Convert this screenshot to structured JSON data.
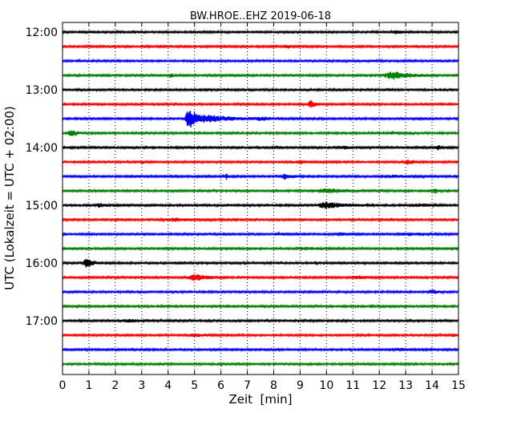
{
  "chart_data": {
    "type": "line",
    "title": "BW.HROE..EHZ 2019-06-18",
    "xlabel": "Zeit  [min]",
    "ylabel": "UTC (Lokalzeit = UTC + 02:00)",
    "xlim": [
      0,
      15
    ],
    "x_ticks": [
      0,
      1,
      2,
      3,
      4,
      5,
      6,
      7,
      8,
      9,
      10,
      11,
      12,
      13,
      14,
      15
    ],
    "x_tick_labels": [
      "0",
      "1",
      "2",
      "3",
      "4",
      "5",
      "6",
      "7",
      "8",
      "9",
      "10",
      "11",
      "12",
      "13",
      "14",
      "15"
    ],
    "y_tick_labels": [
      "12:00",
      "13:00",
      "14:00",
      "15:00",
      "16:00",
      "17:00"
    ],
    "grid": "vertical-dotted",
    "series_colors": [
      "#000000",
      "#ff0000",
      "#0000ff",
      "#008000"
    ],
    "traces": [
      {
        "start": "12:00",
        "color": "#000000",
        "bursts": [
          [
            12.6,
            0.6,
            0.3
          ]
        ]
      },
      {
        "start": "12:15",
        "color": "#ff0000",
        "bursts": [
          [
            8.5,
            0.5,
            0.3
          ]
        ]
      },
      {
        "start": "12:30",
        "color": "#0000ff",
        "bursts": [
          [
            11.5,
            0.6,
            0.2
          ]
        ]
      },
      {
        "start": "12:45",
        "color": "#008000",
        "bursts": [
          [
            4.1,
            0.2,
            0.6
          ],
          [
            12.5,
            1.4,
            1.0
          ]
        ]
      },
      {
        "start": "13:00",
        "color": "#000000",
        "bursts": []
      },
      {
        "start": "13:15",
        "color": "#ff0000",
        "bursts": [
          [
            9.4,
            0.4,
            1.0
          ]
        ]
      },
      {
        "start": "13:30",
        "color": "#0000ff",
        "bursts": [
          [
            4.8,
            0.6,
            2.8
          ],
          [
            5.6,
            1.8,
            0.8
          ],
          [
            7.5,
            1.5,
            0.3
          ]
        ]
      },
      {
        "start": "13:45",
        "color": "#008000",
        "bursts": [
          [
            0.3,
            0.5,
            0.8
          ],
          [
            12.5,
            0.6,
            0.3
          ]
        ]
      },
      {
        "start": "14:00",
        "color": "#000000",
        "bursts": [
          [
            10.7,
            0.8,
            0.3
          ],
          [
            14.2,
            0.3,
            0.6
          ]
        ]
      },
      {
        "start": "14:15",
        "color": "#ff0000",
        "bursts": [
          [
            3.0,
            0.3,
            0.3
          ],
          [
            9.0,
            1.2,
            0.3
          ],
          [
            13.1,
            0.5,
            0.6
          ]
        ]
      },
      {
        "start": "14:30",
        "color": "#0000ff",
        "bursts": [
          [
            6.2,
            0.1,
            1.2
          ],
          [
            8.4,
            0.6,
            0.6
          ],
          [
            12.5,
            1.0,
            0.3
          ]
        ]
      },
      {
        "start": "14:45",
        "color": "#008000",
        "bursts": [
          [
            10.0,
            2.0,
            0.5
          ],
          [
            14.1,
            0.2,
            0.7
          ]
        ]
      },
      {
        "start": "15:00",
        "color": "#000000",
        "bursts": [
          [
            1.4,
            0.6,
            0.4
          ],
          [
            10.0,
            1.5,
            0.8
          ],
          [
            13.5,
            0.8,
            0.3
          ]
        ]
      },
      {
        "start": "15:15",
        "color": "#ff0000",
        "bursts": [
          [
            4.2,
            1.6,
            0.3
          ]
        ]
      },
      {
        "start": "15:30",
        "color": "#0000ff",
        "bursts": [
          [
            8.2,
            0.5,
            0.3
          ],
          [
            10.5,
            1.0,
            0.3
          ],
          [
            13.0,
            1.5,
            0.3
          ]
        ]
      },
      {
        "start": "15:45",
        "color": "#008000",
        "bursts": [
          [
            9.2,
            1.4,
            0.3
          ]
        ]
      },
      {
        "start": "16:00",
        "color": "#000000",
        "bursts": [
          [
            0.9,
            0.5,
            1.1
          ]
        ]
      },
      {
        "start": "16:15",
        "color": "#ff0000",
        "bursts": [
          [
            5.0,
            1.1,
            0.8
          ],
          [
            11.2,
            1.0,
            0.3
          ]
        ]
      },
      {
        "start": "16:30",
        "color": "#0000ff",
        "bursts": [
          [
            14.0,
            0.4,
            0.5
          ]
        ]
      },
      {
        "start": "16:45",
        "color": "#008000",
        "bursts": []
      },
      {
        "start": "17:00",
        "color": "#000000",
        "bursts": [
          [
            2.5,
            1.6,
            0.3
          ]
        ]
      },
      {
        "start": "17:15",
        "color": "#ff0000",
        "bursts": [
          [
            5.0,
            1.0,
            0.3
          ],
          [
            14.8,
            0.2,
            0.4
          ]
        ]
      },
      {
        "start": "17:30",
        "color": "#0000ff",
        "bursts": [
          [
            12.8,
            1.0,
            0.3
          ]
        ]
      },
      {
        "start": "17:45",
        "color": "#008000",
        "bursts": []
      }
    ]
  }
}
